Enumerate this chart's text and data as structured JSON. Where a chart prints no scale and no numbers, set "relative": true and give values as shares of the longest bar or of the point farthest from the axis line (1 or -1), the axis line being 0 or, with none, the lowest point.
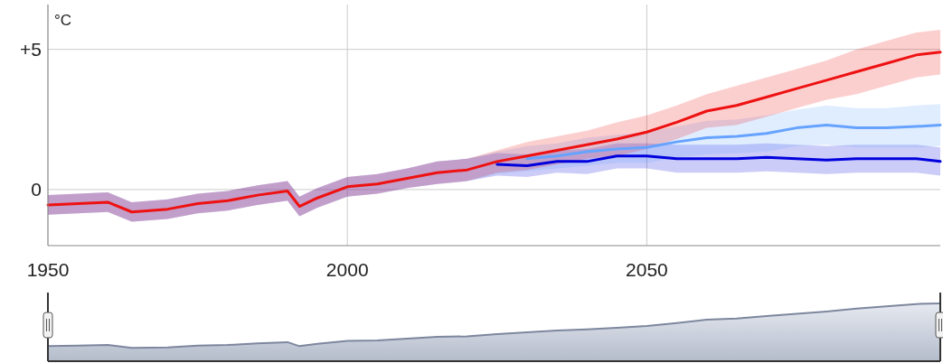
{
  "chart_data": [
    {
      "type": "line",
      "ylabel": "°C",
      "x": [
        1950,
        1955,
        1960,
        1964,
        1970,
        1975,
        1980,
        1985,
        1990,
        1992,
        1995,
        2000,
        2005,
        2010,
        2015,
        2020,
        2025,
        2030,
        2035,
        2040,
        2045,
        2050,
        2055,
        2060,
        2065,
        2070,
        2075,
        2080,
        2085,
        2090,
        2095,
        2099
      ],
      "xlim": [
        1950,
        2099
      ],
      "xticks": [
        1950,
        2000,
        2050
      ],
      "ylim": [
        -2,
        6.6
      ],
      "yticks": [
        0,
        {
          "value": 5,
          "label": "+5"
        }
      ],
      "grid": true,
      "line_style": "solid",
      "series": [
        {
          "color": "#0000dd",
          "values": [
            null,
            null,
            null,
            null,
            null,
            null,
            null,
            null,
            null,
            null,
            null,
            null,
            null,
            null,
            null,
            null,
            0.9,
            0.85,
            1.0,
            1.0,
            1.2,
            1.2,
            1.1,
            1.1,
            1.1,
            1.15,
            1.1,
            1.05,
            1.1,
            1.1,
            1.1,
            1.0
          ],
          "lower": [
            -0.9,
            -0.85,
            -0.8,
            -1.15,
            -1.05,
            -0.85,
            -0.75,
            -0.55,
            -0.4,
            -0.95,
            -0.65,
            -0.25,
            -0.15,
            0.05,
            0.2,
            0.3,
            0.5,
            0.45,
            0.6,
            0.55,
            0.75,
            0.75,
            0.6,
            0.6,
            0.6,
            0.65,
            0.6,
            0.55,
            0.6,
            0.6,
            0.6,
            0.5
          ],
          "upper": [
            -0.2,
            -0.15,
            -0.1,
            -0.45,
            -0.35,
            -0.15,
            -0.05,
            0.15,
            0.3,
            -0.25,
            0.05,
            0.45,
            0.55,
            0.75,
            1.0,
            1.1,
            1.3,
            1.25,
            1.4,
            1.45,
            1.65,
            1.65,
            1.6,
            1.6,
            1.6,
            1.65,
            1.6,
            1.55,
            1.6,
            1.6,
            1.6,
            1.5
          ]
        },
        {
          "color": "#66a3ff",
          "values": [
            null,
            null,
            null,
            null,
            null,
            null,
            null,
            null,
            null,
            null,
            null,
            null,
            null,
            null,
            null,
            null,
            null,
            1.1,
            1.2,
            1.35,
            1.45,
            1.5,
            1.7,
            1.85,
            1.9,
            2.0,
            2.2,
            2.3,
            2.2,
            2.2,
            2.25,
            2.3
          ],
          "lower": [
            -0.9,
            -0.85,
            -0.8,
            -1.15,
            -1.05,
            -0.85,
            -0.75,
            -0.55,
            -0.4,
            -0.95,
            -0.65,
            -0.25,
            -0.15,
            0.05,
            0.2,
            0.3,
            0.55,
            0.65,
            0.75,
            0.85,
            0.95,
            0.95,
            1.15,
            1.25,
            1.3,
            1.35,
            1.55,
            1.6,
            1.5,
            1.5,
            1.5,
            1.55
          ],
          "upper": [
            -0.2,
            -0.15,
            -0.1,
            -0.45,
            -0.35,
            -0.15,
            -0.05,
            0.15,
            0.3,
            -0.25,
            0.05,
            0.45,
            0.55,
            0.75,
            1.0,
            1.1,
            1.35,
            1.55,
            1.65,
            1.85,
            1.95,
            2.05,
            2.25,
            2.45,
            2.5,
            2.65,
            2.85,
            3.0,
            2.9,
            2.9,
            3.0,
            3.05
          ]
        },
        {
          "color": "#ee1111",
          "values": [
            -0.55,
            -0.5,
            -0.45,
            -0.8,
            -0.7,
            -0.5,
            -0.4,
            -0.2,
            -0.05,
            -0.6,
            -0.3,
            0.1,
            0.2,
            0.4,
            0.6,
            0.7,
            1.0,
            1.2,
            1.4,
            1.6,
            1.8,
            2.05,
            2.4,
            2.8,
            3.0,
            3.3,
            3.6,
            3.9,
            4.2,
            4.5,
            4.8,
            4.9
          ],
          "lower": [
            -0.9,
            -0.85,
            -0.8,
            -1.15,
            -1.05,
            -0.85,
            -0.75,
            -0.55,
            -0.4,
            -0.95,
            -0.65,
            -0.25,
            -0.15,
            0.05,
            0.2,
            0.3,
            0.6,
            0.7,
            0.9,
            1.1,
            1.2,
            1.45,
            1.8,
            2.2,
            2.3,
            2.6,
            2.9,
            3.2,
            3.4,
            3.7,
            4.0,
            4.1
          ],
          "upper": [
            -0.2,
            -0.15,
            -0.1,
            -0.45,
            -0.35,
            -0.15,
            -0.05,
            0.15,
            0.3,
            -0.25,
            0.05,
            0.45,
            0.55,
            0.75,
            1.0,
            1.1,
            1.4,
            1.7,
            1.9,
            2.1,
            2.4,
            2.65,
            3.0,
            3.4,
            3.7,
            4.0,
            4.3,
            4.6,
            5.0,
            5.3,
            5.6,
            5.7
          ]
        }
      ]
    },
    {
      "type": "area",
      "relative": true,
      "xlim": [
        1950,
        2099
      ],
      "x": [
        1950,
        1955,
        1960,
        1964,
        1970,
        1975,
        1980,
        1985,
        1990,
        1992,
        1995,
        2000,
        2005,
        2010,
        2015,
        2020,
        2025,
        2030,
        2035,
        2040,
        2045,
        2050,
        2055,
        2060,
        2065,
        2070,
        2075,
        2080,
        2085,
        2090,
        2095,
        2099
      ],
      "series": [
        {
          "color": "#7d879e",
          "values": [
            0.26,
            0.27,
            0.28,
            0.23,
            0.24,
            0.27,
            0.28,
            0.31,
            0.33,
            0.26,
            0.3,
            0.35,
            0.36,
            0.39,
            0.42,
            0.43,
            0.47,
            0.5,
            0.53,
            0.55,
            0.58,
            0.61,
            0.66,
            0.72,
            0.74,
            0.78,
            0.82,
            0.86,
            0.91,
            0.95,
            0.99,
            1
          ]
        }
      ]
    }
  ]
}
